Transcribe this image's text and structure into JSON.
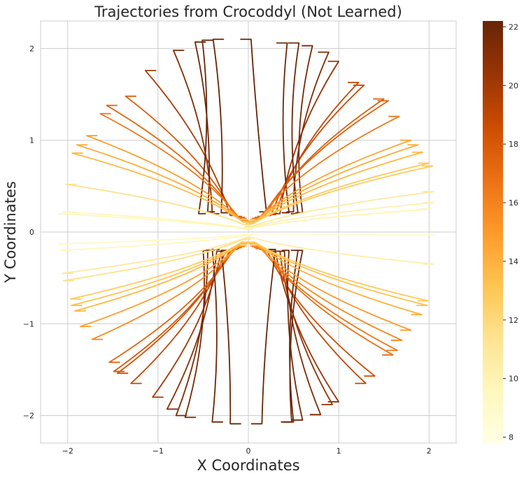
{
  "chart_data": {
    "type": "line",
    "title": "Trajectories from Crocoddyl (Not Learned)",
    "xlabel": "X Coordinates",
    "ylabel": "Y Coordinates",
    "xlim": [
      -2.3,
      2.3
    ],
    "ylim": [
      -2.3,
      2.3
    ],
    "xticks": [
      -2,
      -1,
      0,
      1,
      2
    ],
    "yticks": [
      -2,
      -1,
      0,
      1,
      2
    ],
    "xticklabels": [
      "−2",
      "−1",
      "0",
      "1",
      "2"
    ],
    "yticklabels": [
      "−2",
      "−1",
      "0",
      "1",
      "2"
    ],
    "grid": true,
    "colormap": "YlOrBr",
    "colorbar": {
      "range": [
        7.8,
        22.2
      ],
      "ticks": [
        8,
        10,
        12,
        14,
        16,
        18,
        20,
        22
      ],
      "ticklabels": [
        "8",
        "10",
        "12",
        "14",
        "16",
        "18",
        "20",
        "22"
      ]
    },
    "trajectory_shape": "each line runs from a start point on a ring of radius ~2.1 to an end point near the origin (y ≈ ±0.2); color encodes trajectory length",
    "start_points": [
      [
        -0.51,
        2.09
      ],
      [
        -0.59,
        2.07
      ],
      [
        -0.39,
        2.1
      ],
      [
        0.03,
        2.1
      ],
      [
        0.43,
        2.06
      ],
      [
        0.56,
        2.06
      ],
      [
        0.71,
        2.03
      ],
      [
        0.89,
        1.96
      ],
      [
        -0.83,
        1.98
      ],
      [
        -1.14,
        1.76
      ],
      [
        1.0,
        1.86
      ],
      [
        1.22,
        1.63
      ],
      [
        1.28,
        1.6
      ],
      [
        1.5,
        1.45
      ],
      [
        1.55,
        1.43
      ],
      [
        1.67,
        1.26
      ],
      [
        -1.36,
        1.48
      ],
      [
        -1.57,
        1.38
      ],
      [
        -1.64,
        1.29
      ],
      [
        -1.79,
        1.05
      ],
      [
        -1.9,
        0.95
      ],
      [
        -1.95,
        0.86
      ],
      [
        1.8,
        1.0
      ],
      [
        1.88,
        0.95
      ],
      [
        1.93,
        0.87
      ],
      [
        2.0,
        0.75
      ],
      [
        2.04,
        0.72
      ],
      [
        -2.02,
        0.52
      ],
      [
        -2.05,
        0.22
      ],
      [
        -2.1,
        0.2
      ],
      [
        2.05,
        0.44
      ],
      [
        2.05,
        0.32
      ],
      [
        2.02,
        0.25
      ],
      [
        -2.1,
        -0.13
      ],
      [
        -2.08,
        -0.2
      ],
      [
        -2.06,
        -0.45
      ],
      [
        -2.05,
        -0.53
      ],
      [
        2.05,
        -0.35
      ],
      [
        2.06,
        -0.03
      ],
      [
        1.99,
        -0.75
      ],
      [
        1.98,
        -0.8
      ],
      [
        1.92,
        -0.9
      ],
      [
        -1.97,
        -0.73
      ],
      [
        -1.96,
        -0.8
      ],
      [
        -1.92,
        -0.86
      ],
      [
        -1.86,
        -1.03
      ],
      [
        -1.73,
        -1.17
      ],
      [
        1.8,
        -1.07
      ],
      [
        1.7,
        -1.18
      ],
      [
        1.65,
        -1.29
      ],
      [
        1.6,
        -1.34
      ],
      [
        -1.54,
        -1.42
      ],
      [
        -1.49,
        -1.52
      ],
      [
        -1.45,
        -1.54
      ],
      [
        -1.3,
        -1.65
      ],
      [
        -1.06,
        -1.8
      ],
      [
        1.4,
        -1.57
      ],
      [
        1.3,
        -1.65
      ],
      [
        1.0,
        -1.85
      ],
      [
        0.93,
        -1.88
      ],
      [
        -0.9,
        -1.93
      ],
      [
        -0.8,
        -2.0
      ],
      [
        -0.7,
        -2.02
      ],
      [
        0.8,
        -1.99
      ],
      [
        0.6,
        -2.05
      ],
      [
        0.5,
        -2.07
      ],
      [
        -0.4,
        -2.07
      ],
      [
        -0.2,
        -2.09
      ],
      [
        0.15,
        -2.09
      ],
      [
        0.48,
        -2.07
      ]
    ],
    "end_points": [
      [
        -0.55,
        0.2
      ],
      [
        -0.45,
        0.22
      ],
      [
        -0.3,
        0.21
      ],
      [
        0.2,
        0.22
      ],
      [
        0.45,
        0.21
      ],
      [
        0.55,
        0.2
      ],
      [
        0.6,
        0.21
      ],
      [
        0.5,
        0.22
      ],
      [
        -0.4,
        0.2
      ],
      [
        -0.2,
        0.18
      ],
      [
        0.35,
        0.2
      ],
      [
        0.3,
        0.19
      ],
      [
        0.25,
        0.18
      ],
      [
        0.18,
        0.17
      ],
      [
        0.15,
        0.16
      ],
      [
        0.12,
        0.15
      ],
      [
        -0.15,
        0.17
      ],
      [
        -0.12,
        0.16
      ],
      [
        -0.1,
        0.15
      ],
      [
        -0.08,
        0.13
      ],
      [
        -0.07,
        0.12
      ],
      [
        -0.06,
        0.11
      ],
      [
        0.1,
        0.14
      ],
      [
        0.08,
        0.12
      ],
      [
        0.07,
        0.11
      ],
      [
        0.06,
        0.1
      ],
      [
        0.05,
        0.09
      ],
      [
        -0.05,
        0.08
      ],
      [
        -0.04,
        0.04
      ],
      [
        -0.03,
        0.03
      ],
      [
        0.04,
        0.06
      ],
      [
        0.03,
        0.05
      ],
      [
        0.02,
        0.04
      ],
      [
        -0.03,
        -0.03
      ],
      [
        -0.04,
        -0.04
      ],
      [
        -0.05,
        -0.07
      ],
      [
        -0.06,
        -0.08
      ],
      [
        0.04,
        -0.06
      ],
      [
        0.02,
        -0.02
      ],
      [
        0.07,
        -0.11
      ],
      [
        0.08,
        -0.12
      ],
      [
        0.09,
        -0.13
      ],
      [
        -0.07,
        -0.11
      ],
      [
        -0.08,
        -0.12
      ],
      [
        -0.09,
        -0.13
      ],
      [
        -0.1,
        -0.15
      ],
      [
        -0.12,
        -0.16
      ],
      [
        0.1,
        -0.15
      ],
      [
        0.12,
        -0.16
      ],
      [
        0.14,
        -0.17
      ],
      [
        0.16,
        -0.18
      ],
      [
        -0.15,
        -0.17
      ],
      [
        -0.18,
        -0.18
      ],
      [
        -0.2,
        -0.19
      ],
      [
        -0.25,
        -0.2
      ],
      [
        -0.3,
        -0.21
      ],
      [
        0.2,
        -0.19
      ],
      [
        0.25,
        -0.2
      ],
      [
        0.3,
        -0.21
      ],
      [
        0.35,
        -0.21
      ],
      [
        -0.35,
        -0.21
      ],
      [
        -0.45,
        -0.2
      ],
      [
        -0.5,
        -0.2
      ],
      [
        0.4,
        -0.21
      ],
      [
        0.45,
        -0.2
      ],
      [
        0.55,
        -0.2
      ],
      [
        -0.4,
        -0.19
      ],
      [
        -0.3,
        -0.2
      ],
      [
        0.3,
        -0.19
      ],
      [
        0.6,
        -0.2
      ]
    ]
  }
}
